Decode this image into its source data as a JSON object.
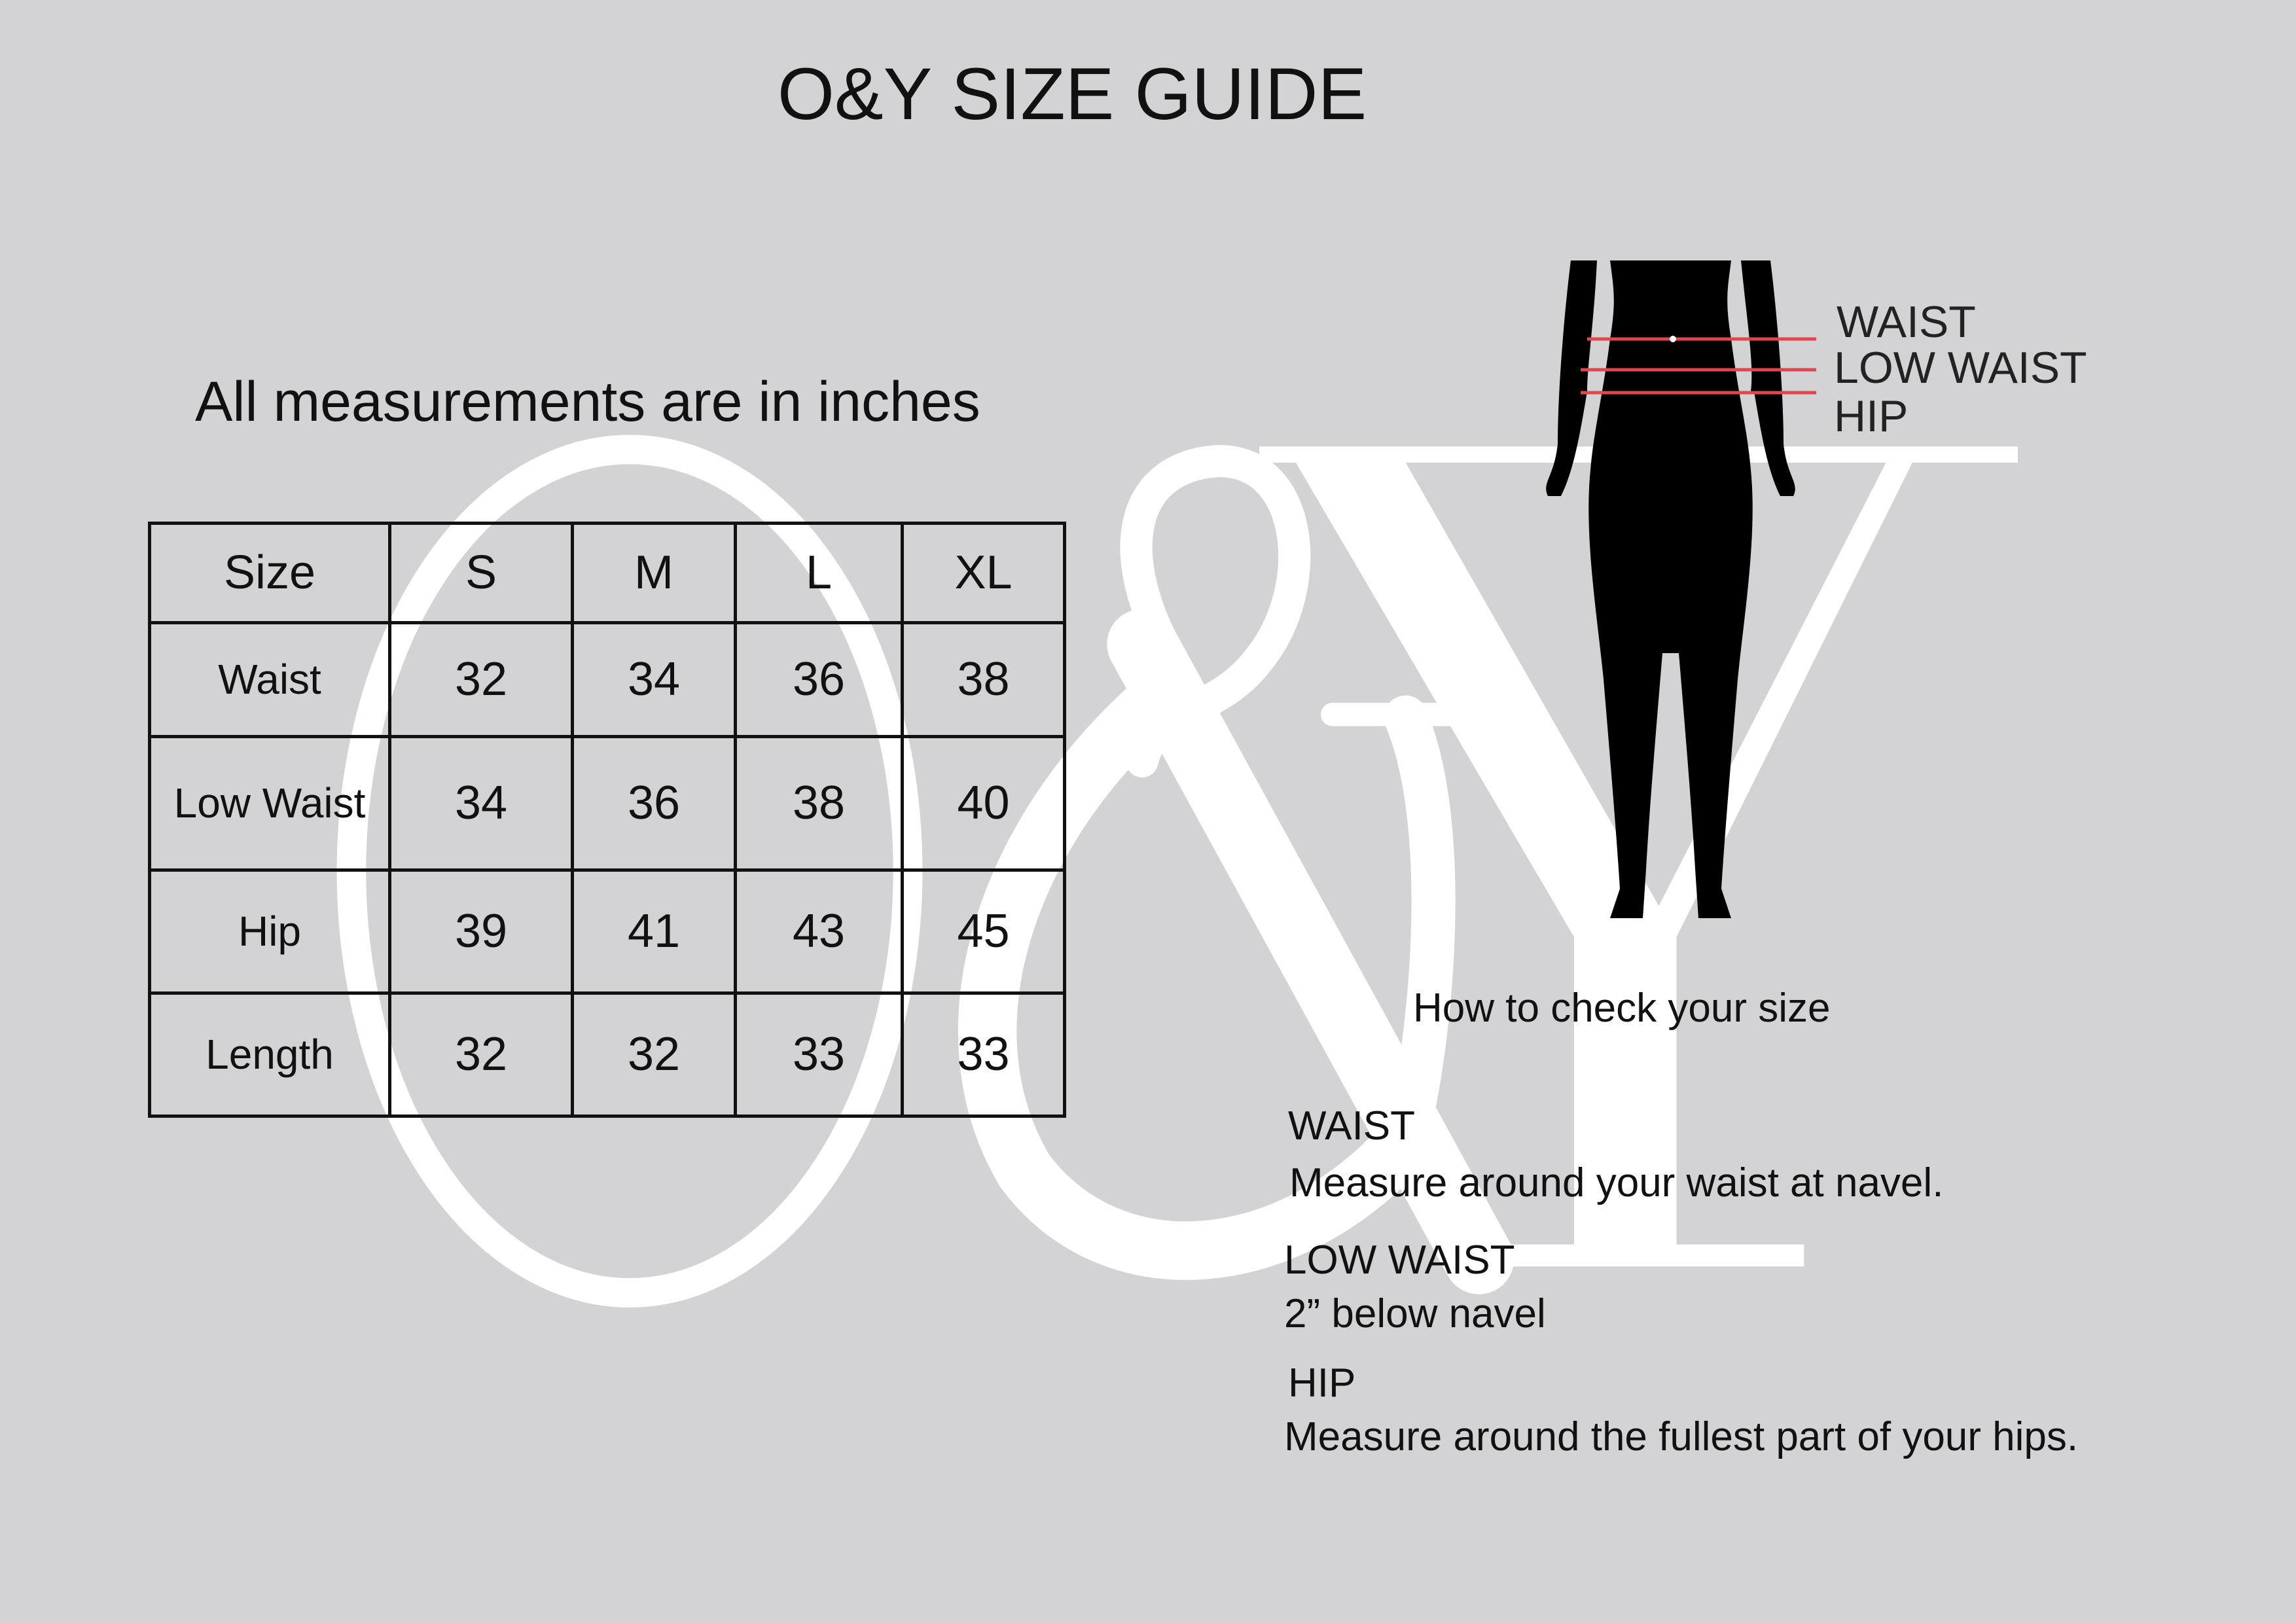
{
  "title": "O&Y SIZE GUIDE",
  "subtitle": "All measurements are in inches",
  "watermark": "O&Y",
  "table": {
    "header": [
      "Size",
      "S",
      "M",
      "L",
      "XL"
    ],
    "rows": [
      {
        "label": "Waist",
        "values": [
          "32",
          "34",
          "36",
          "38"
        ]
      },
      {
        "label": "Low Waist",
        "values": [
          "34",
          "36",
          "38",
          "40"
        ]
      },
      {
        "label": "Hip",
        "values": [
          "39",
          "41",
          "43",
          "45"
        ]
      },
      {
        "label": "Length",
        "values": [
          "32",
          "32",
          "33",
          "33"
        ]
      }
    ]
  },
  "figure": {
    "labels": [
      "WAIST",
      "LOW WAIST",
      "HIP"
    ],
    "line_color": "#e0474c"
  },
  "howto": {
    "heading": "How to check your size",
    "items": [
      {
        "term": "WAIST",
        "desc": "Measure around your waist at navel."
      },
      {
        "term": "LOW WAIST",
        "desc": "2” below navel"
      },
      {
        "term": "HIP",
        "desc": "Measure around the fullest part of your hips."
      }
    ]
  }
}
